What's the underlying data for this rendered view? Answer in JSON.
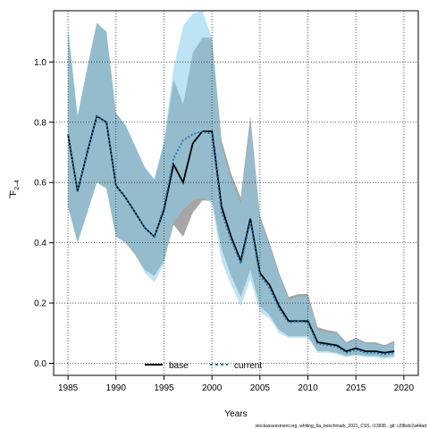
{
  "chart_data": {
    "type": "line",
    "title": "",
    "xlabel": "Years",
    "ylabel": "F",
    "ylabel_sub": "2–4",
    "xlim": [
      1983.5,
      2021.5
    ],
    "ylim": [
      -0.04,
      1.17
    ],
    "xticks": [
      "1985",
      "1990",
      "1995",
      "2000",
      "2005",
      "2010",
      "2015",
      "2020"
    ],
    "yticks": [
      "0.0",
      "0.2",
      "0.4",
      "0.6",
      "0.8",
      "1.0"
    ],
    "grid": true,
    "legend_position": "bottom",
    "x": [
      1985,
      1986,
      1987,
      1988,
      1989,
      1990,
      1991,
      1992,
      1993,
      1994,
      1995,
      1996,
      1997,
      1998,
      1999,
      2000,
      2001,
      2002,
      2003,
      2004,
      2005,
      2006,
      2007,
      2008,
      2009,
      2010,
      2011,
      2012,
      2013,
      2014,
      2015,
      2016,
      2017,
      2018,
      2019
    ],
    "series": [
      {
        "name": "base",
        "color": "#000000",
        "band_color": "#808080",
        "values": [
          0.76,
          0.57,
          0.7,
          0.82,
          0.8,
          0.59,
          0.55,
          0.5,
          0.45,
          0.42,
          0.51,
          0.66,
          0.6,
          0.73,
          0.77,
          0.77,
          0.52,
          0.42,
          0.34,
          0.48,
          0.3,
          0.26,
          0.19,
          0.14,
          0.14,
          0.14,
          0.07,
          0.065,
          0.06,
          0.04,
          0.05,
          0.04,
          0.04,
          0.035,
          0.04
        ],
        "lower": [
          0.52,
          0.4,
          0.5,
          0.6,
          0.58,
          0.42,
          0.4,
          0.36,
          0.31,
          0.29,
          0.34,
          0.46,
          0.42,
          0.5,
          0.54,
          0.54,
          0.38,
          0.29,
          0.22,
          0.31,
          0.19,
          0.16,
          0.11,
          0.09,
          0.09,
          0.09,
          0.04,
          0.04,
          0.035,
          0.025,
          0.03,
          0.025,
          0.025,
          0.02,
          0.025
        ],
        "upper": [
          1.11,
          0.82,
          0.98,
          1.13,
          1.1,
          0.83,
          0.79,
          0.72,
          0.65,
          0.61,
          0.73,
          0.94,
          0.86,
          1.03,
          1.08,
          1.08,
          0.74,
          0.63,
          0.55,
          0.82,
          0.49,
          0.4,
          0.3,
          0.22,
          0.23,
          0.23,
          0.12,
          0.11,
          0.105,
          0.07,
          0.085,
          0.07,
          0.07,
          0.06,
          0.075
        ]
      },
      {
        "name": "current",
        "color": "#1f77b4",
        "band_color": "#87ceeb",
        "values": [
          0.76,
          0.57,
          0.7,
          0.82,
          0.8,
          0.59,
          0.55,
          0.5,
          0.45,
          0.42,
          0.52,
          0.68,
          0.74,
          0.76,
          0.77,
          0.76,
          0.5,
          0.41,
          0.33,
          0.47,
          0.29,
          0.25,
          0.18,
          0.135,
          0.14,
          0.135,
          0.065,
          0.06,
          0.055,
          0.035,
          0.045,
          0.035,
          0.035,
          0.03,
          0.035
        ],
        "lower": [
          0.52,
          0.4,
          0.5,
          0.6,
          0.58,
          0.42,
          0.4,
          0.36,
          0.3,
          0.27,
          0.33,
          0.47,
          0.51,
          0.54,
          0.55,
          0.53,
          0.34,
          0.26,
          0.19,
          0.28,
          0.17,
          0.15,
          0.1,
          0.085,
          0.085,
          0.085,
          0.035,
          0.035,
          0.03,
          0.02,
          0.025,
          0.02,
          0.02,
          0.015,
          0.02
        ],
        "upper": [
          1.11,
          0.82,
          0.98,
          1.13,
          1.1,
          0.83,
          0.79,
          0.72,
          0.65,
          0.61,
          0.74,
          0.98,
          1.12,
          1.16,
          1.17,
          1.08,
          0.72,
          0.61,
          0.53,
          0.8,
          0.48,
          0.39,
          0.29,
          0.21,
          0.22,
          0.22,
          0.11,
          0.1,
          0.1,
          0.065,
          0.08,
          0.065,
          0.065,
          0.055,
          0.07
        ]
      }
    ],
    "footnote": "stockassessment.org,  whiting_6a_benchmark_2021_CSS,  r13935 ,  git: c28bdc2a44ad"
  }
}
